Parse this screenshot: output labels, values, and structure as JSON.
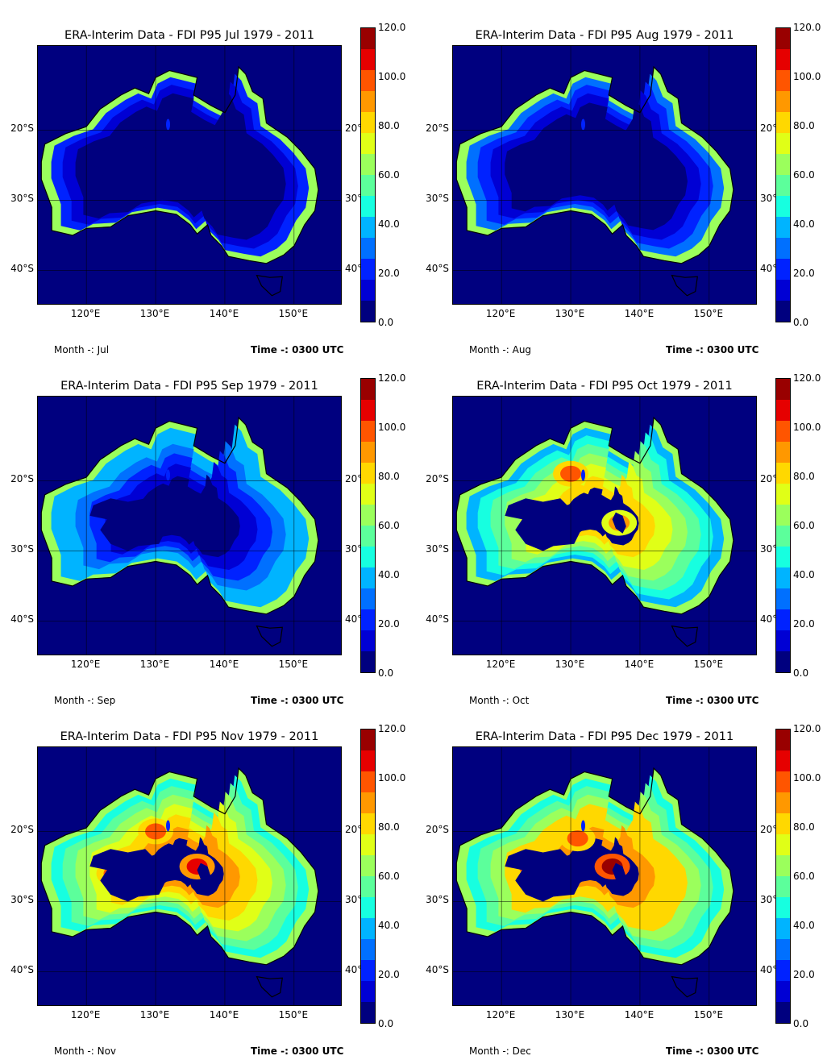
{
  "panels": [
    {
      "title": "ERA-Interim Data - FDI P95 Jul 1979 - 2011",
      "month": "Month -: Jul",
      "time": "Time -: 0300 UTC",
      "levels": [
        7,
        2,
        1,
        0,
        0,
        0,
        0,
        0
      ],
      "hot": []
    },
    {
      "title": "ERA-Interim Data - FDI P95 Aug 1979 - 2011",
      "month": "Month -: Aug",
      "time": "Time -: 0300 UTC",
      "levels": [
        7,
        3,
        2,
        1,
        0,
        0,
        0,
        0
      ],
      "hot": []
    },
    {
      "title": "ERA-Interim Data - FDI P95 Sep 1979 - 2011",
      "month": "Month -: Sep",
      "time": "Time -: 0300 UTC",
      "levels": [
        7,
        4,
        4,
        3,
        2,
        1,
        0,
        0
      ],
      "hot": []
    },
    {
      "title": "ERA-Interim Data - FDI P95 Oct 1979 - 2011",
      "month": "Month -: Oct",
      "time": "Time -: 0300 UTC",
      "levels": [
        7,
        4,
        5,
        6,
        7,
        8,
        9,
        0
      ],
      "hot": [
        [
          130,
          -19,
          11
        ],
        [
          137,
          -26,
          10
        ]
      ]
    },
    {
      "title": "ERA-Interim Data - FDI P95 Nov 1979 - 2011",
      "month": "Month -: Nov",
      "time": "Time -: 0300 UTC",
      "levels": [
        7,
        5,
        6,
        7,
        8,
        9,
        10,
        0
      ],
      "hot": [
        [
          136,
          -25,
          12
        ],
        [
          130,
          -20,
          11
        ],
        [
          124,
          -26,
          11
        ]
      ]
    },
    {
      "title": "ERA-Interim Data - FDI P95 Dec 1979 - 2011",
      "month": "Month -: Dec",
      "time": "Time -: 0300 UTC",
      "levels": [
        7,
        5,
        6,
        7,
        9,
        9,
        10,
        0
      ],
      "hot": [
        [
          136,
          -25,
          13
        ],
        [
          124,
          -25,
          11
        ],
        [
          131,
          -21,
          11
        ]
      ]
    }
  ],
  "lat_labels_left": [
    "20°S",
    "30°S",
    "40°S"
  ],
  "lat_labels_right": [
    "20°",
    "30°",
    "40°"
  ],
  "lon_labels": [
    "120°E",
    "130°E",
    "140°E",
    "150°E"
  ],
  "colorbar": {
    "ticks": [
      "120.0",
      "100.0",
      "80.0",
      "60.0",
      "40.0",
      "20.0",
      "0.0"
    ],
    "colors": [
      "#00007f",
      "#0000d4",
      "#0022ff",
      "#0070ff",
      "#00b4ff",
      "#17ffe0",
      "#5cff9b",
      "#9bff5c",
      "#e0ff17",
      "#ffd800",
      "#ff9800",
      "#ff5500",
      "#e60000",
      "#990000"
    ]
  },
  "map": {
    "ocean": "#00007f",
    "inland_low": "#00007f",
    "lon_range": [
      113,
      157
    ],
    "lat_range": [
      -45,
      -8
    ]
  }
}
